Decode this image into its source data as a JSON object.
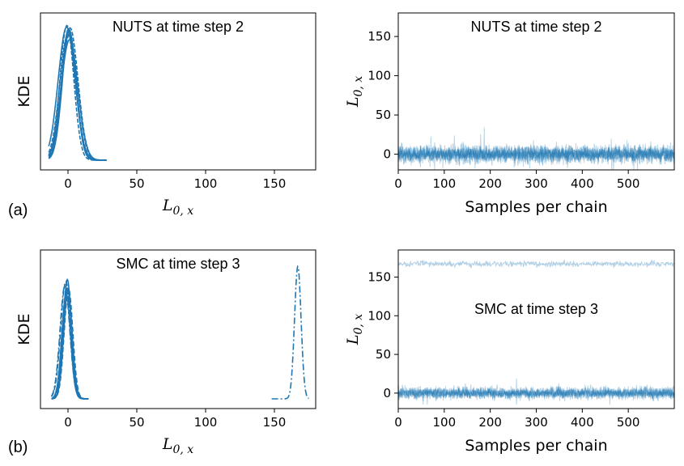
{
  "figure": {
    "panel_labels": [
      "(a)",
      "(b)"
    ]
  },
  "chart_data": [
    {
      "panel": "a-left",
      "type": "line",
      "title": "NUTS at time step 2",
      "xlabel": "L_{0,x}",
      "ylabel": "KDE",
      "xlim": [
        -20,
        180
      ],
      "xticks": [
        0,
        50,
        100,
        150
      ],
      "yticks_shown": false,
      "color": "#1f77b4",
      "series": [
        {
          "kind": "kde",
          "mean": 0,
          "sd": 5.5,
          "x_from": -14,
          "x_to": 28,
          "height": 1.0,
          "linestyle": "solid",
          "count": 8
        }
      ]
    },
    {
      "panel": "a-right",
      "type": "line",
      "title": "NUTS at time step 2",
      "xlabel": "Samples per chain",
      "ylabel": "L_{0,x}",
      "xlim": [
        0,
        600
      ],
      "ylim": [
        -20,
        180
      ],
      "xticks": [
        0,
        100,
        200,
        300,
        400,
        500
      ],
      "yticks": [
        0,
        50,
        100,
        150
      ],
      "color": "#1f77b4",
      "series": [
        {
          "kind": "trace",
          "level": 0,
          "noise_sd": 6,
          "chains": 8,
          "samples": 600
        }
      ]
    },
    {
      "panel": "b-left",
      "type": "line",
      "title": "SMC at time step 3",
      "xlabel": "L_{0,x}",
      "ylabel": "KDE",
      "xlim": [
        -20,
        180
      ],
      "xticks": [
        0,
        50,
        100,
        150
      ],
      "yticks_shown": false,
      "color": "#1f77b4",
      "series": [
        {
          "kind": "kde",
          "mean": -1,
          "sd": 3.5,
          "x_from": -12,
          "x_to": 15,
          "height": 0.87,
          "linestyle": "mixed",
          "count": 8
        },
        {
          "kind": "kde",
          "mean": 168,
          "sd": 2.5,
          "x_from": 148,
          "x_to": 175,
          "height": 1.0,
          "linestyle": "dashdot",
          "count": 1
        }
      ]
    },
    {
      "panel": "b-right",
      "type": "line",
      "title": "SMC at time step 3",
      "xlabel": "Samples per chain",
      "ylabel": "L_{0,x}",
      "xlim": [
        0,
        600
      ],
      "ylim": [
        -20,
        185
      ],
      "xticks": [
        0,
        100,
        200,
        300,
        400,
        500
      ],
      "yticks": [
        0,
        50,
        100,
        150
      ],
      "color": "#1f77b4",
      "series": [
        {
          "kind": "trace",
          "level": 0,
          "noise_sd": 4,
          "chains": 7,
          "samples": 600
        },
        {
          "kind": "trace",
          "level": 167,
          "noise_sd": 2,
          "chains": 1,
          "samples": 600,
          "light": true
        }
      ]
    }
  ]
}
